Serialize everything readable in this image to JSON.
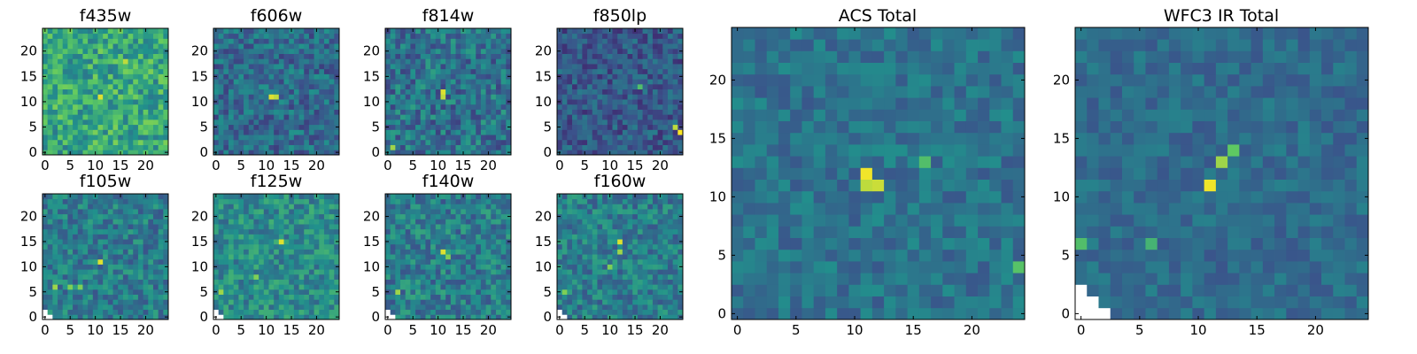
{
  "figure": {
    "colormap": "viridis",
    "colormap_stops": [
      "#440154",
      "#3b528b",
      "#21918c",
      "#5ec962",
      "#fde725"
    ],
    "background": "#ffffff"
  },
  "chart_data": [
    {
      "type": "heatmap",
      "title": "f435w",
      "grid_size": 25,
      "xlim": [
        0,
        24
      ],
      "ylim": [
        0,
        24
      ],
      "xticks": [
        0,
        5,
        10,
        15,
        20
      ],
      "yticks": [
        0,
        5,
        10,
        15,
        20
      ],
      "mean_level": 0.6,
      "noise": 0.2,
      "hotspots": [
        {
          "x": 11,
          "y": 11,
          "value": 0.95
        },
        {
          "x": 16,
          "y": 18,
          "value": 0.9
        }
      ],
      "masked_corner": 0
    },
    {
      "type": "heatmap",
      "title": "f606w",
      "grid_size": 25,
      "xlim": [
        0,
        24
      ],
      "ylim": [
        0,
        24
      ],
      "xticks": [
        0,
        5,
        10,
        15,
        20
      ],
      "yticks": [
        0,
        5,
        10,
        15,
        20
      ],
      "mean_level": 0.35,
      "noise": 0.16,
      "hotspots": [
        {
          "x": 11,
          "y": 11,
          "value": 0.95
        },
        {
          "x": 12,
          "y": 11,
          "value": 0.9
        }
      ],
      "masked_corner": 0
    },
    {
      "type": "heatmap",
      "title": "f814w",
      "grid_size": 25,
      "xlim": [
        0,
        24
      ],
      "ylim": [
        0,
        24
      ],
      "xticks": [
        0,
        5,
        10,
        15,
        20
      ],
      "yticks": [
        0,
        5,
        10,
        15,
        20
      ],
      "mean_level": 0.38,
      "noise": 0.18,
      "hotspots": [
        {
          "x": 11,
          "y": 12,
          "value": 0.95
        },
        {
          "x": 11,
          "y": 11,
          "value": 0.9
        },
        {
          "x": 1,
          "y": 1,
          "value": 0.85
        }
      ],
      "masked_corner": 0
    },
    {
      "type": "heatmap",
      "title": "f850lp",
      "grid_size": 25,
      "xlim": [
        0,
        24
      ],
      "ylim": [
        0,
        24
      ],
      "xticks": [
        0,
        5,
        10,
        15,
        20
      ],
      "yticks": [
        0,
        5,
        10,
        15,
        20
      ],
      "mean_level": 0.28,
      "noise": 0.14,
      "hotspots": [
        {
          "x": 24,
          "y": 4,
          "value": 1.0
        },
        {
          "x": 23,
          "y": 5,
          "value": 0.9
        },
        {
          "x": 16,
          "y": 13,
          "value": 0.7
        }
      ],
      "masked_corner": 0
    },
    {
      "type": "heatmap",
      "title": "f105w",
      "grid_size": 25,
      "xlim": [
        0,
        24
      ],
      "ylim": [
        0,
        24
      ],
      "xticks": [
        0,
        5,
        10,
        15,
        20
      ],
      "yticks": [
        0,
        5,
        10,
        15,
        20
      ],
      "mean_level": 0.42,
      "noise": 0.16,
      "hotspots": [
        {
          "x": 11,
          "y": 11,
          "value": 0.95
        },
        {
          "x": 2,
          "y": 6,
          "value": 0.85
        },
        {
          "x": 5,
          "y": 6,
          "value": 0.8
        },
        {
          "x": 7,
          "y": 6,
          "value": 0.8
        }
      ],
      "masked_corner": 2
    },
    {
      "type": "heatmap",
      "title": "f125w",
      "grid_size": 25,
      "xlim": [
        0,
        24
      ],
      "ylim": [
        0,
        24
      ],
      "xticks": [
        0,
        5,
        10,
        15,
        20
      ],
      "yticks": [
        0,
        5,
        10,
        15,
        20
      ],
      "mean_level": 0.48,
      "noise": 0.16,
      "hotspots": [
        {
          "x": 13,
          "y": 15,
          "value": 0.95
        },
        {
          "x": 1,
          "y": 5,
          "value": 0.85
        },
        {
          "x": 8,
          "y": 8,
          "value": 0.8
        }
      ],
      "masked_corner": 2
    },
    {
      "type": "heatmap",
      "title": "f140w",
      "grid_size": 25,
      "xlim": [
        0,
        24
      ],
      "ylim": [
        0,
        24
      ],
      "xticks": [
        0,
        5,
        10,
        15,
        20
      ],
      "yticks": [
        0,
        5,
        10,
        15,
        20
      ],
      "mean_level": 0.42,
      "noise": 0.17,
      "hotspots": [
        {
          "x": 11,
          "y": 13,
          "value": 0.95
        },
        {
          "x": 12,
          "y": 12,
          "value": 0.8
        },
        {
          "x": 2,
          "y": 5,
          "value": 0.85
        }
      ],
      "masked_corner": 2
    },
    {
      "type": "heatmap",
      "title": "f160w",
      "grid_size": 25,
      "xlim": [
        0,
        24
      ],
      "ylim": [
        0,
        24
      ],
      "xticks": [
        0,
        5,
        10,
        15,
        20
      ],
      "yticks": [
        0,
        5,
        10,
        15,
        20
      ],
      "mean_level": 0.42,
      "noise": 0.16,
      "hotspots": [
        {
          "x": 12,
          "y": 15,
          "value": 0.95
        },
        {
          "x": 12,
          "y": 13,
          "value": 0.85
        },
        {
          "x": 10,
          "y": 10,
          "value": 0.8
        },
        {
          "x": 1,
          "y": 5,
          "value": 0.8
        }
      ],
      "masked_corner": 2
    },
    {
      "type": "heatmap",
      "title": "ACS Total",
      "grid_size": 25,
      "xlim": [
        0,
        24
      ],
      "ylim": [
        0,
        24
      ],
      "xticks": [
        0,
        5,
        10,
        15,
        20
      ],
      "yticks": [
        0,
        5,
        10,
        15,
        20
      ],
      "mean_level": 0.38,
      "noise": 0.11,
      "hotspots": [
        {
          "x": 11,
          "y": 12,
          "value": 0.98
        },
        {
          "x": 12,
          "y": 11,
          "value": 0.92
        },
        {
          "x": 11,
          "y": 11,
          "value": 0.9
        },
        {
          "x": 16,
          "y": 13,
          "value": 0.7
        },
        {
          "x": 24,
          "y": 4,
          "value": 0.72
        }
      ],
      "masked_corner": 0
    },
    {
      "type": "heatmap",
      "title": "WFC3 IR Total",
      "grid_size": 25,
      "xlim": [
        0,
        24
      ],
      "ylim": [
        0,
        24
      ],
      "xticks": [
        0,
        5,
        10,
        15,
        20
      ],
      "yticks": [
        0,
        5,
        10,
        15,
        20
      ],
      "mean_level": 0.35,
      "noise": 0.09,
      "hotspots": [
        {
          "x": 11,
          "y": 11,
          "value": 0.98
        },
        {
          "x": 12,
          "y": 13,
          "value": 0.85
        },
        {
          "x": 13,
          "y": 14,
          "value": 0.75
        },
        {
          "x": 0,
          "y": 6,
          "value": 0.7
        },
        {
          "x": 6,
          "y": 6,
          "value": 0.65
        }
      ],
      "masked_corner": 3
    }
  ]
}
